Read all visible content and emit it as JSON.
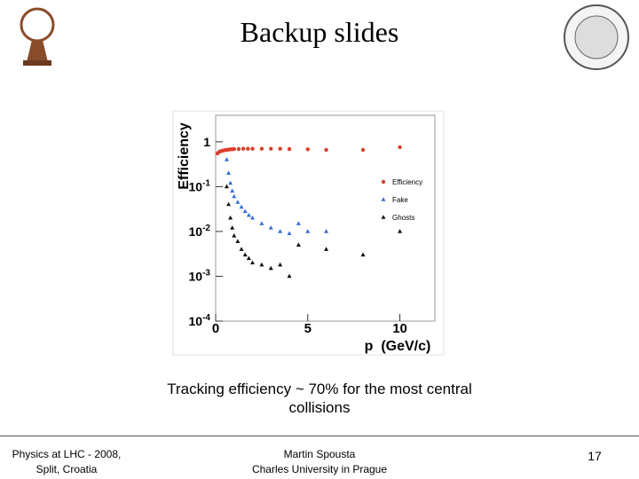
{
  "slide": {
    "title": "Backup slides",
    "caption": "Tracking efficiency ~ 70% for the most central collisions",
    "footer_left": [
      "Physics at LHC - 2008,",
      "Split, Croatia"
    ],
    "footer_center": [
      "Martin Spousta",
      "Charles University in Prague"
    ],
    "page_number": "17"
  },
  "chart_data": {
    "type": "scatter",
    "x_label": "p  (GeV/c)",
    "y_label": "Efficiency",
    "xlim": [
      0,
      11.9
    ],
    "ylim": [
      0.0001,
      3.9
    ],
    "log_y": true,
    "xticks": [
      0,
      5,
      10
    ],
    "yticks": [
      {
        "value": 0.0001,
        "label": "10-4"
      },
      {
        "value": 0.001,
        "label": "10-3"
      },
      {
        "value": 0.01,
        "label": "10-2"
      },
      {
        "value": 0.1,
        "label": "10-1"
      },
      1
    ],
    "legend": "right",
    "series": [
      {
        "name": "Efficiency",
        "color": "#d9402a",
        "marker": "circle",
        "x": [
          0.1,
          0.2,
          0.3,
          0.4,
          0.5,
          0.6,
          0.7,
          0.8,
          0.9,
          1.0,
          1.25,
          1.5,
          1.75,
          2.0,
          2.5,
          3.0,
          3.5,
          4.0,
          5.0,
          6.0,
          8.0,
          10.0
        ],
        "values": [
          0.55,
          0.6,
          0.62,
          0.64,
          0.65,
          0.66,
          0.67,
          0.68,
          0.68,
          0.69,
          0.69,
          0.7,
          0.7,
          0.7,
          0.7,
          0.7,
          0.7,
          0.69,
          0.68,
          0.66,
          0.66,
          0.76
        ]
      },
      {
        "name": "Fake",
        "color": "#3a6fd1",
        "marker": "triangle",
        "x": [
          0.6,
          0.7,
          0.8,
          0.9,
          1.0,
          1.2,
          1.4,
          1.6,
          1.8,
          2.0,
          2.5,
          3.0,
          3.5,
          4.0,
          4.5,
          5.0,
          6.0
        ],
        "values": [
          0.4,
          0.2,
          0.12,
          0.08,
          0.06,
          0.045,
          0.035,
          0.028,
          0.023,
          0.02,
          0.015,
          0.012,
          0.01,
          0.009,
          0.015,
          0.01,
          0.01
        ]
      },
      {
        "name": "Ghosts",
        "color": "#111111",
        "marker": "triangle",
        "x": [
          0.6,
          0.7,
          0.8,
          0.9,
          1.0,
          1.2,
          1.4,
          1.6,
          1.8,
          2.0,
          2.5,
          3.0,
          3.5,
          4.0,
          4.5,
          6.0,
          8.0,
          10.0
        ],
        "values": [
          0.1,
          0.04,
          0.02,
          0.012,
          0.008,
          0.006,
          0.004,
          0.003,
          0.0025,
          0.002,
          0.0018,
          0.0015,
          0.0018,
          0.001,
          0.005,
          0.004,
          0.003,
          0.01
        ]
      }
    ]
  }
}
